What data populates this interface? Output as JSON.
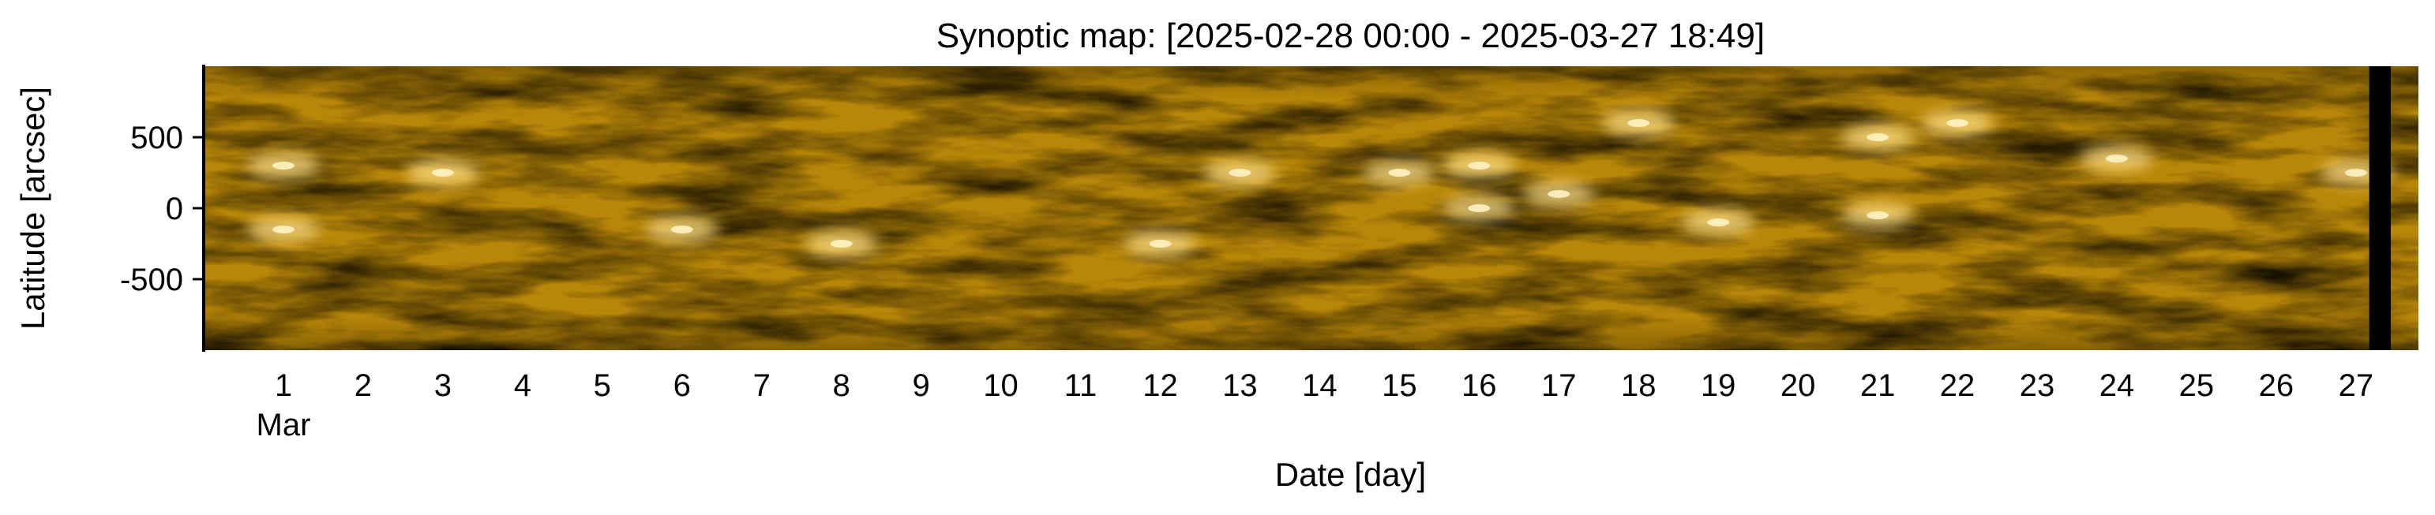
{
  "chart_data": {
    "type": "heatmap",
    "title": "Synoptic map: [2025-02-28 00:00 - 2025-03-27 18:49]",
    "xlabel": "Date [day]",
    "ylabel": "Latitude [arcsec]",
    "x_ticks": [
      {
        "value": "2025-03-01",
        "label": "1"
      },
      {
        "value": "2025-03-02",
        "label": "2"
      },
      {
        "value": "2025-03-03",
        "label": "3"
      },
      {
        "value": "2025-03-04",
        "label": "4"
      },
      {
        "value": "2025-03-05",
        "label": "5"
      },
      {
        "value": "2025-03-06",
        "label": "6"
      },
      {
        "value": "2025-03-07",
        "label": "7"
      },
      {
        "value": "2025-03-08",
        "label": "8"
      },
      {
        "value": "2025-03-09",
        "label": "9"
      },
      {
        "value": "2025-03-10",
        "label": "10"
      },
      {
        "value": "2025-03-11",
        "label": "11"
      },
      {
        "value": "2025-03-12",
        "label": "12"
      },
      {
        "value": "2025-03-13",
        "label": "13"
      },
      {
        "value": "2025-03-14",
        "label": "14"
      },
      {
        "value": "2025-03-15",
        "label": "15"
      },
      {
        "value": "2025-03-16",
        "label": "16"
      },
      {
        "value": "2025-03-17",
        "label": "17"
      },
      {
        "value": "2025-03-18",
        "label": "18"
      },
      {
        "value": "2025-03-19",
        "label": "19"
      },
      {
        "value": "2025-03-20",
        "label": "20"
      },
      {
        "value": "2025-03-21",
        "label": "21"
      },
      {
        "value": "2025-03-22",
        "label": "22"
      },
      {
        "value": "2025-03-23",
        "label": "23"
      },
      {
        "value": "2025-03-24",
        "label": "24"
      },
      {
        "value": "2025-03-25",
        "label": "25"
      },
      {
        "value": "2025-03-26",
        "label": "26"
      },
      {
        "value": "2025-03-27",
        "label": "27"
      }
    ],
    "x_month_label": "Mar",
    "y_ticks": [
      {
        "value": 500,
        "label": "500"
      },
      {
        "value": 0,
        "label": "0"
      },
      {
        "value": -500,
        "label": "-500"
      }
    ],
    "xlim": [
      "2025-02-28 00:00",
      "2025-03-27 18:49"
    ],
    "ylim": [
      -1000,
      1000
    ],
    "data_gap": {
      "start": "2025-03-27 04:00",
      "end": "2025-03-27 10:30"
    },
    "active_regions": [
      {
        "date": "2025-03-01",
        "lat": 300
      },
      {
        "date": "2025-03-01",
        "lat": -150
      },
      {
        "date": "2025-03-03",
        "lat": 250
      },
      {
        "date": "2025-03-06",
        "lat": -150
      },
      {
        "date": "2025-03-08",
        "lat": -250
      },
      {
        "date": "2025-03-12",
        "lat": -250
      },
      {
        "date": "2025-03-13",
        "lat": 250
      },
      {
        "date": "2025-03-15",
        "lat": 250
      },
      {
        "date": "2025-03-16",
        "lat": 300
      },
      {
        "date": "2025-03-16",
        "lat": 0
      },
      {
        "date": "2025-03-17",
        "lat": 100
      },
      {
        "date": "2025-03-18",
        "lat": 600
      },
      {
        "date": "2025-03-19",
        "lat": -100
      },
      {
        "date": "2025-03-21",
        "lat": -50
      },
      {
        "date": "2025-03-21",
        "lat": 500
      },
      {
        "date": "2025-03-22",
        "lat": 600
      },
      {
        "date": "2025-03-24",
        "lat": 350
      },
      {
        "date": "2025-03-27",
        "lat": 250
      }
    ],
    "colors": {
      "base": "#B88608",
      "dark": "#5E4300",
      "bright": "#FFE08A",
      "gap": "#000000"
    },
    "grid": false,
    "legend": "none"
  }
}
